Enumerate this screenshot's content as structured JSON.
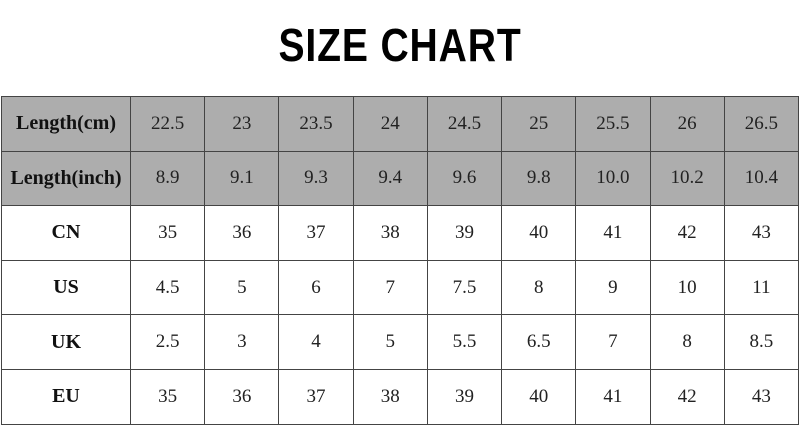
{
  "title": "SIZE  CHART",
  "rows": [
    {
      "label": "Length(cm)",
      "shaded": true,
      "values": [
        "22.5",
        "23",
        "23.5",
        "24",
        "24.5",
        "25",
        "25.5",
        "26",
        "26.5"
      ]
    },
    {
      "label": "Length(inch)",
      "shaded": true,
      "values": [
        "8.9",
        "9.1",
        "9.3",
        "9.4",
        "9.6",
        "9.8",
        "10.0",
        "10.2",
        "10.4"
      ]
    },
    {
      "label": "CN",
      "shaded": false,
      "values": [
        "35",
        "36",
        "37",
        "38",
        "39",
        "40",
        "41",
        "42",
        "43"
      ]
    },
    {
      "label": "US",
      "shaded": false,
      "values": [
        "4.5",
        "5",
        "6",
        "7",
        "7.5",
        "8",
        "9",
        "10",
        "11"
      ]
    },
    {
      "label": "UK",
      "shaded": false,
      "values": [
        "2.5",
        "3",
        "4",
        "5",
        "5.5",
        "6.5",
        "7",
        "8",
        "8.5"
      ]
    },
    {
      "label": "EU",
      "shaded": false,
      "values": [
        "35",
        "36",
        "37",
        "38",
        "39",
        "40",
        "41",
        "42",
        "43"
      ]
    }
  ],
  "colors": {
    "header_shade": "#adadad",
    "border": "#444444"
  }
}
